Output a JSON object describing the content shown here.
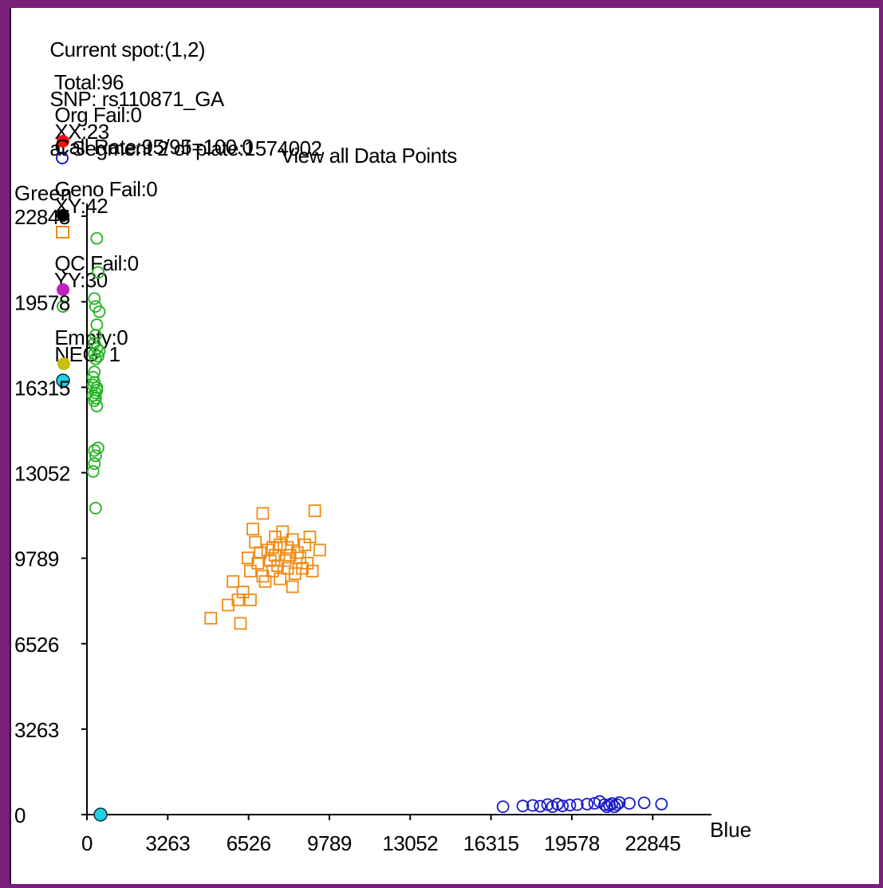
{
  "header": {
    "spot_label": "Current spot:(1,2)",
    "snp_label": "SNP: rs110871_GA",
    "segment_label": "at Segment 2 of plate:1574002",
    "total": "Total:96",
    "xx": "XX:23",
    "xy": "XY:42",
    "yy": "YY:30",
    "neg": "NEG: 1",
    "org_fail": "Org Fail:0",
    "geno_fail": "Geno Fail:0",
    "qc_fail": "QC Fail:0",
    "empty": "Empty:0",
    "call_rate": "Call Rate:95/95=100.0",
    "view_label": "View all Data Points"
  },
  "colors": {
    "xx": "#1a1ac8",
    "xy": "#f08a14",
    "yy": "#22b422",
    "neg": "#20d0e0",
    "org_fail": "#ee1111",
    "geno_fail": "#000000",
    "qc_fail": "#c020c0",
    "empty": "#c8c010",
    "frame": "#7a1f7a"
  },
  "chart_data": {
    "type": "scatter",
    "title": "View all Data Points",
    "xlabel": "Blue",
    "ylabel": "Green",
    "xlim": [
      0,
      24800
    ],
    "ylim": [
      0,
      22845
    ],
    "xticks": [
      "0",
      "3263",
      "6526",
      "9789",
      "13052",
      "16315",
      "19578",
      "22845"
    ],
    "yticks": [
      "0",
      "3263",
      "6526",
      "9789",
      "13052",
      "16315",
      "19578",
      "22845"
    ],
    "series": [
      {
        "name": "XX",
        "marker": "circle",
        "points": [
          [
            16800,
            300
          ],
          [
            17600,
            330
          ],
          [
            18000,
            350
          ],
          [
            18300,
            320
          ],
          [
            18600,
            380
          ],
          [
            18800,
            300
          ],
          [
            19000,
            400
          ],
          [
            19200,
            330
          ],
          [
            19500,
            360
          ],
          [
            19800,
            380
          ],
          [
            20200,
            400
          ],
          [
            20500,
            430
          ],
          [
            20700,
            500
          ],
          [
            20900,
            380
          ],
          [
            21000,
            300
          ],
          [
            21100,
            360
          ],
          [
            21200,
            420
          ],
          [
            21300,
            300
          ],
          [
            21400,
            380
          ],
          [
            21500,
            460
          ],
          [
            21900,
            430
          ],
          [
            22500,
            450
          ],
          [
            23200,
            400
          ]
        ]
      },
      {
        "name": "XY",
        "marker": "square",
        "points": [
          [
            5000,
            7500
          ],
          [
            5700,
            8000
          ],
          [
            5900,
            8900
          ],
          [
            6100,
            8200
          ],
          [
            6200,
            7300
          ],
          [
            6300,
            8500
          ],
          [
            6500,
            9800
          ],
          [
            6600,
            8200
          ],
          [
            6600,
            9300
          ],
          [
            6700,
            10900
          ],
          [
            6800,
            10400
          ],
          [
            6900,
            9600
          ],
          [
            7000,
            10000
          ],
          [
            7100,
            9100
          ],
          [
            7100,
            11500
          ],
          [
            7200,
            8900
          ],
          [
            7300,
            10100
          ],
          [
            7400,
            9700
          ],
          [
            7500,
            9300
          ],
          [
            7500,
            10200
          ],
          [
            7600,
            9900
          ],
          [
            7600,
            10600
          ],
          [
            7700,
            9500
          ],
          [
            7800,
            9000
          ],
          [
            7800,
            10300
          ],
          [
            7900,
            10800
          ],
          [
            8000,
            9700
          ],
          [
            8100,
            9400
          ],
          [
            8100,
            10200
          ],
          [
            8200,
            9900
          ],
          [
            8300,
            10500
          ],
          [
            8300,
            8700
          ],
          [
            8400,
            9200
          ],
          [
            8500,
            10000
          ],
          [
            8600,
            9800
          ],
          [
            8700,
            9400
          ],
          [
            8800,
            10300
          ],
          [
            8900,
            9600
          ],
          [
            9000,
            10600
          ],
          [
            9100,
            9300
          ],
          [
            9200,
            11600
          ],
          [
            9400,
            10100
          ]
        ]
      },
      {
        "name": "YY",
        "marker": "circle",
        "points": [
          [
            400,
            22000
          ],
          [
            450,
            20700
          ],
          [
            300,
            19700
          ],
          [
            350,
            19400
          ],
          [
            500,
            19200
          ],
          [
            400,
            18700
          ],
          [
            350,
            18300
          ],
          [
            300,
            18000
          ],
          [
            400,
            17800
          ],
          [
            500,
            17700
          ],
          [
            450,
            17500
          ],
          [
            350,
            17400
          ],
          [
            300,
            16900
          ],
          [
            250,
            16700
          ],
          [
            300,
            16500
          ],
          [
            400,
            16300
          ],
          [
            350,
            16100
          ],
          [
            250,
            16000
          ],
          [
            350,
            15900
          ],
          [
            300,
            15800
          ],
          [
            400,
            15600
          ],
          [
            300,
            13400
          ],
          [
            350,
            13700
          ],
          [
            250,
            13100
          ],
          [
            450,
            14000
          ],
          [
            300,
            13900
          ],
          [
            350,
            11700
          ],
          [
            250,
            16400
          ],
          [
            400,
            16200
          ],
          [
            300,
            17600
          ]
        ]
      },
      {
        "name": "NEG",
        "marker": "filled-circle",
        "points": [
          [
            550,
            0
          ]
        ]
      }
    ]
  }
}
